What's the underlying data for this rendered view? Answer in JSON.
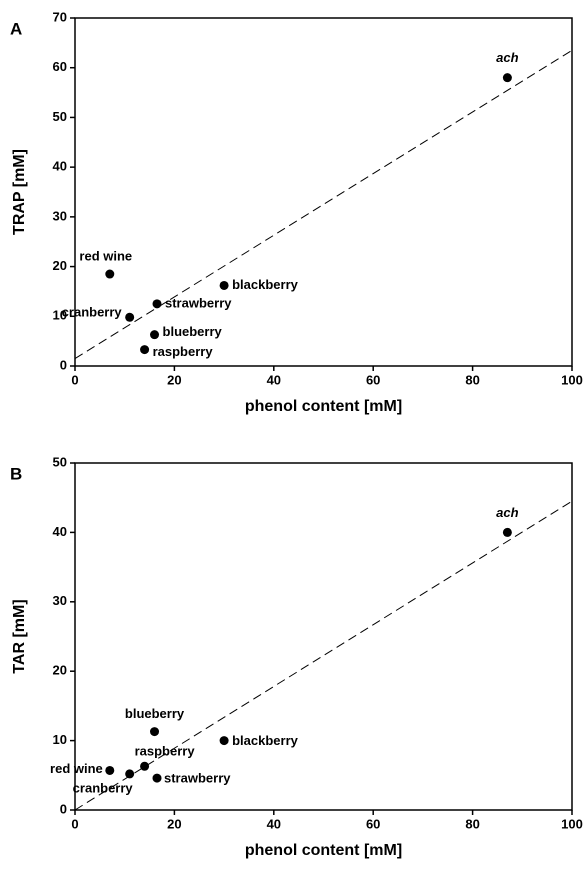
{
  "chart_data": [
    {
      "type": "scatter",
      "panel": "A",
      "ylabel": "TRAP [mM]",
      "xlabel": "phenol content [mM]",
      "xlim": [
        0,
        100
      ],
      "ylim": [
        0,
        70
      ],
      "xticks": [
        0,
        20,
        40,
        60,
        80,
        100
      ],
      "yticks": [
        0,
        10,
        20,
        30,
        40,
        50,
        60,
        70
      ],
      "labels": [
        "ach",
        "red wine",
        "blackberry",
        "strawberry",
        "cranberry",
        "blueberry",
        "raspberry"
      ],
      "x": [
        87,
        7,
        30,
        16.5,
        11,
        16,
        14
      ],
      "values": [
        58,
        18.5,
        16.2,
        12.5,
        9.8,
        6.3,
        3.3
      ],
      "fit": {
        "x": [
          0,
          100
        ],
        "values": [
          1.5,
          63.5
        ]
      }
    },
    {
      "type": "scatter",
      "panel": "B",
      "ylabel": "TAR [mM]",
      "xlabel": "phenol content [mM]",
      "xlim": [
        0,
        100
      ],
      "ylim": [
        0,
        50
      ],
      "xticks": [
        0,
        20,
        40,
        60,
        80,
        100
      ],
      "yticks": [
        0,
        10,
        20,
        30,
        40,
        50
      ],
      "labels": [
        "ach",
        "blueberry",
        "blackberry",
        "raspberry",
        "red wine",
        "cranberry",
        "strawberry"
      ],
      "x": [
        87,
        16,
        30,
        14,
        7,
        11,
        16.5
      ],
      "values": [
        40,
        11.3,
        10,
        6.3,
        5.7,
        5.2,
        4.6
      ],
      "fit": {
        "x": [
          0,
          100
        ],
        "values": [
          0,
          44.5
        ]
      }
    }
  ]
}
